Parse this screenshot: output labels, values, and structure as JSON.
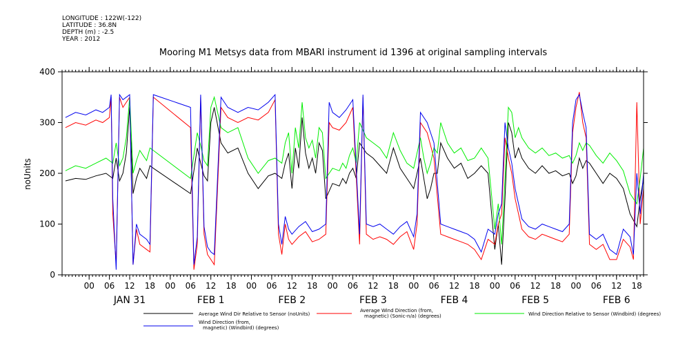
{
  "meta": {
    "lines": [
      "LONGITUDE : 122W(-122)",
      "LATITUDE : 36.8N",
      "DEPTH (m) : -2.5",
      "YEAR : 2012"
    ]
  },
  "chart_data": {
    "type": "line",
    "title": "Mooring M1 Metsys data from MBARI instrument id 1396 at original sampling intervals",
    "ylabel": "noUnits",
    "xlabel": "",
    "ylim": [
      0,
      400
    ],
    "yticks": [
      0,
      100,
      200,
      300,
      400
    ],
    "xlim_hours": [
      -8,
      164
    ],
    "hour_ticks": [
      {
        "h": 0,
        "label": "00"
      },
      {
        "h": 6,
        "label": "06"
      },
      {
        "h": 12,
        "label": "12"
      },
      {
        "h": 18,
        "label": "18"
      },
      {
        "h": 24,
        "label": "00"
      },
      {
        "h": 30,
        "label": "06"
      },
      {
        "h": 36,
        "label": "12"
      },
      {
        "h": 42,
        "label": "18"
      },
      {
        "h": 48,
        "label": "00"
      },
      {
        "h": 54,
        "label": "06"
      },
      {
        "h": 60,
        "label": "12"
      },
      {
        "h": 66,
        "label": "18"
      },
      {
        "h": 72,
        "label": "00"
      },
      {
        "h": 78,
        "label": "06"
      },
      {
        "h": 84,
        "label": "12"
      },
      {
        "h": 90,
        "label": "18"
      },
      {
        "h": 96,
        "label": "00"
      },
      {
        "h": 102,
        "label": "06"
      },
      {
        "h": 108,
        "label": "12"
      },
      {
        "h": 114,
        "label": "18"
      },
      {
        "h": 120,
        "label": "00"
      },
      {
        "h": 126,
        "label": "06"
      },
      {
        "h": 132,
        "label": "12"
      },
      {
        "h": 138,
        "label": "18"
      },
      {
        "h": 144,
        "label": "00"
      },
      {
        "h": 150,
        "label": "06"
      },
      {
        "h": 156,
        "label": "12"
      },
      {
        "h": 162,
        "label": "18"
      }
    ],
    "day_labels": [
      {
        "h": 12,
        "label": "JAN 31"
      },
      {
        "h": 36,
        "label": "FEB  1"
      },
      {
        "h": 60,
        "label": "FEB  2"
      },
      {
        "h": 84,
        "label": "FEB  3"
      },
      {
        "h": 108,
        "label": "FEB  4"
      },
      {
        "h": 132,
        "label": "FEB  5"
      },
      {
        "h": 156,
        "label": "FEB  6"
      }
    ],
    "series": [
      {
        "name": "Average Wind Dir Relative to Sensor (noUnits)",
        "color": "#000000",
        "x": [
          -7,
          -4,
          -1,
          2,
          5,
          7,
          8,
          9,
          10,
          11,
          12,
          13,
          14,
          15,
          16,
          17,
          18,
          19,
          30,
          32,
          33,
          34,
          35,
          36,
          37,
          39,
          41,
          44,
          47,
          50,
          53,
          55,
          57,
          58,
          59,
          60,
          61,
          62,
          63,
          64,
          65,
          66,
          67,
          68,
          69,
          70,
          72,
          74,
          75,
          76,
          77,
          78,
          79,
          80,
          82,
          84,
          86,
          88,
          90,
          92,
          94,
          96,
          97,
          98,
          99,
          100,
          101,
          102,
          103,
          104,
          106,
          108,
          110,
          112,
          114,
          116,
          118,
          120,
          121,
          122,
          123,
          124,
          125,
          126,
          127,
          128,
          130,
          132,
          134,
          136,
          138,
          140,
          142,
          143,
          144,
          145,
          146,
          147,
          148,
          149,
          150,
          152,
          154,
          156,
          158,
          160,
          162,
          163,
          164
        ],
        "y": [
          185,
          190,
          188,
          195,
          200,
          190,
          230,
          185,
          200,
          240,
          330,
          160,
          190,
          210,
          200,
          190,
          215,
          210,
          160,
          250,
          220,
          195,
          185,
          300,
          330,
          260,
          240,
          250,
          200,
          170,
          195,
          200,
          190,
          220,
          240,
          170,
          250,
          210,
          310,
          240,
          210,
          230,
          200,
          260,
          245,
          150,
          180,
          175,
          190,
          180,
          200,
          210,
          190,
          260,
          240,
          230,
          215,
          200,
          250,
          210,
          190,
          170,
          200,
          230,
          190,
          150,
          170,
          200,
          200,
          260,
          230,
          210,
          220,
          190,
          200,
          215,
          200,
          50,
          100,
          20,
          150,
          300,
          280,
          230,
          250,
          230,
          210,
          200,
          215,
          200,
          205,
          195,
          200,
          180,
          195,
          230,
          210,
          225,
          220,
          210,
          200,
          180,
          200,
          190,
          170,
          120,
          95,
          150,
          190
        ],
        "smooth": true
      },
      {
        "name": "Average Wind Direction (from, magnetic) (Sonic-n/a) (degrees)",
        "color": "#ff0000",
        "x": [
          -7,
          -4,
          -1,
          2,
          4,
          6,
          6.5,
          7,
          8,
          9,
          10,
          11,
          12,
          13,
          14,
          15,
          16,
          17,
          18,
          19,
          30,
          31,
          32,
          33,
          34,
          35,
          36,
          37,
          39,
          41,
          44,
          47,
          50,
          53,
          55,
          56,
          57,
          58,
          59,
          60,
          62,
          64,
          66,
          68,
          70,
          71,
          72,
          74,
          76,
          78,
          80,
          81,
          82,
          84,
          86,
          88,
          90,
          92,
          94,
          96,
          97,
          98,
          100,
          102,
          104,
          106,
          108,
          110,
          112,
          114,
          116,
          118,
          120,
          121,
          122,
          123,
          124,
          125,
          126,
          128,
          130,
          132,
          134,
          136,
          138,
          140,
          142,
          143,
          144,
          145,
          146,
          147,
          148,
          150,
          152,
          154,
          156,
          158,
          160,
          161,
          162,
          163,
          164
        ],
        "y": [
          290,
          300,
          295,
          305,
          300,
          310,
          350,
          120,
          20,
          350,
          330,
          340,
          350,
          20,
          90,
          60,
          55,
          50,
          45,
          350,
          290,
          10,
          60,
          350,
          80,
          40,
          30,
          20,
          330,
          310,
          300,
          310,
          305,
          320,
          345,
          80,
          40,
          100,
          70,
          60,
          75,
          85,
          65,
          70,
          80,
          300,
          290,
          285,
          300,
          330,
          60,
          350,
          80,
          70,
          75,
          70,
          60,
          75,
          85,
          50,
          100,
          300,
          280,
          230,
          80,
          75,
          70,
          65,
          60,
          50,
          30,
          70,
          60,
          100,
          120,
          270,
          230,
          200,
          150,
          90,
          75,
          70,
          80,
          75,
          70,
          65,
          80,
          280,
          330,
          360,
          300,
          270,
          60,
          50,
          60,
          30,
          30,
          70,
          55,
          30,
          340,
          100,
          170
        ],
        "smooth": false
      },
      {
        "name": "Wind Direction Relative to Sensor (Windbird) (degrees)",
        "color": "#00ee00",
        "x": [
          -7,
          -4,
          -1,
          2,
          5,
          7,
          8,
          9,
          10,
          11,
          12,
          13,
          14,
          15,
          16,
          17,
          18,
          19,
          30,
          32,
          33,
          34,
          35,
          36,
          37,
          39,
          41,
          44,
          47,
          50,
          53,
          55,
          57,
          58,
          59,
          60,
          61,
          62,
          63,
          64,
          65,
          66,
          67,
          68,
          69,
          70,
          72,
          74,
          75,
          76,
          77,
          78,
          79,
          80,
          82,
          84,
          86,
          88,
          90,
          92,
          94,
          96,
          97,
          98,
          99,
          100,
          101,
          102,
          103,
          104,
          106,
          108,
          110,
          112,
          114,
          116,
          118,
          120,
          121,
          122,
          123,
          124,
          125,
          126,
          127,
          128,
          130,
          132,
          134,
          136,
          138,
          140,
          142,
          143,
          144,
          145,
          146,
          147,
          148,
          149,
          150,
          152,
          154,
          156,
          158,
          160,
          162,
          163,
          164
        ],
        "y": [
          205,
          215,
          210,
          220,
          230,
          220,
          260,
          215,
          230,
          270,
          350,
          200,
          225,
          245,
          235,
          225,
          250,
          245,
          190,
          280,
          255,
          225,
          215,
          330,
          350,
          290,
          280,
          290,
          230,
          200,
          225,
          230,
          220,
          260,
          280,
          200,
          290,
          250,
          340,
          270,
          250,
          265,
          230,
          290,
          280,
          190,
          210,
          205,
          220,
          210,
          235,
          250,
          220,
          300,
          270,
          260,
          250,
          230,
          280,
          245,
          220,
          210,
          240,
          270,
          230,
          200,
          220,
          250,
          240,
          300,
          260,
          240,
          250,
          225,
          230,
          250,
          230,
          90,
          140,
          60,
          190,
          330,
          320,
          270,
          290,
          270,
          250,
          240,
          250,
          235,
          240,
          230,
          235,
          220,
          235,
          260,
          245,
          260,
          255,
          245,
          235,
          220,
          240,
          225,
          205,
          160,
          140,
          190,
          250
        ],
        "smooth": true
      },
      {
        "name": "Wind Direction (from, magnetic) (Windbird) (degrees)",
        "color": "#0000ee",
        "x": [
          -7,
          -4,
          -1,
          2,
          4,
          6,
          6.5,
          7,
          8,
          9,
          10,
          11,
          12,
          13,
          14,
          15,
          16,
          17,
          18,
          19,
          30,
          31,
          32,
          33,
          34,
          35,
          36,
          37,
          39,
          41,
          44,
          47,
          50,
          53,
          55,
          56,
          57,
          58,
          59,
          60,
          62,
          64,
          66,
          68,
          70,
          71,
          72,
          74,
          76,
          78,
          80,
          81,
          82,
          84,
          86,
          88,
          90,
          92,
          94,
          96,
          97,
          98,
          100,
          102,
          104,
          106,
          108,
          110,
          112,
          114,
          116,
          118,
          120,
          121,
          122,
          123,
          124,
          125,
          126,
          128,
          130,
          132,
          134,
          136,
          138,
          140,
          142,
          143,
          144,
          145,
          146,
          147,
          148,
          150,
          152,
          154,
          156,
          158,
          160,
          161,
          162,
          163,
          164
        ],
        "y": [
          310,
          320,
          315,
          325,
          320,
          330,
          355,
          150,
          10,
          355,
          345,
          350,
          355,
          20,
          100,
          80,
          75,
          70,
          60,
          355,
          330,
          20,
          75,
          355,
          95,
          55,
          45,
          40,
          350,
          330,
          320,
          330,
          325,
          340,
          355,
          100,
          60,
          115,
          90,
          80,
          95,
          105,
          85,
          90,
          100,
          340,
          320,
          310,
          325,
          345,
          80,
          355,
          100,
          95,
          100,
          90,
          80,
          95,
          105,
          75,
          120,
          320,
          300,
          260,
          100,
          95,
          90,
          85,
          80,
          70,
          45,
          90,
          80,
          120,
          140,
          300,
          250,
          220,
          170,
          110,
          95,
          90,
          100,
          95,
          90,
          85,
          100,
          300,
          345,
          355,
          320,
          290,
          80,
          70,
          80,
          50,
          40,
          90,
          75,
          40,
          200,
          120,
          200
        ],
        "smooth": false
      }
    ]
  },
  "legend": [
    {
      "label": "Average Wind Dir Relative to Sensor (noUnits)",
      "color": "#000000"
    },
    {
      "label_lines": [
        "Average Wind Direction (from,",
        "magnetic) (Sonic-n/a) (degrees)"
      ],
      "color": "#ff0000"
    },
    {
      "label": "Wind Direction Relative to Sensor (Windbird) (degrees)",
      "color": "#00ee00"
    },
    {
      "label_lines": [
        "Wind Direction (from,",
        "magnetic) (Windbird) (degrees)"
      ],
      "color": "#0000ee"
    }
  ]
}
